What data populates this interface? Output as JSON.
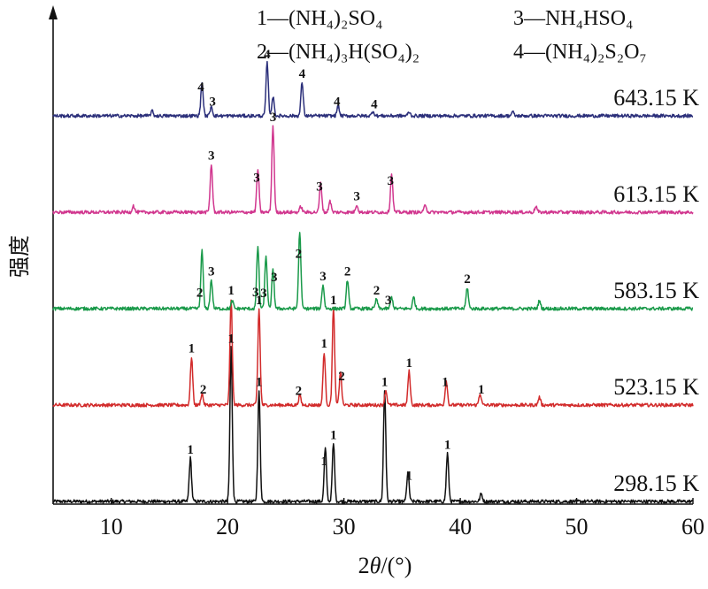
{
  "chart_data": {
    "type": "line",
    "xlabel_prefix": "2",
    "xlabel_theta": "θ",
    "xlabel_suffix": "/(°)",
    "ylabel": "强度",
    "xlim": [
      5,
      60
    ],
    "xticks": [
      "10",
      "20",
      "30",
      "40",
      "50",
      "60"
    ],
    "xtick_values": [
      10,
      20,
      30,
      40,
      50,
      60
    ],
    "grid": false,
    "legend": [
      {
        "num": "1",
        "dash": "—",
        "formula": "(NH₄)₂SO₄"
      },
      {
        "num": "2",
        "dash": "—",
        "formula": "(NH₄)₃H(SO₄)₂"
      },
      {
        "num": "3",
        "dash": "—",
        "formula": "NH₄HSO₄"
      },
      {
        "num": "4",
        "dash": "—",
        "formula": "(NH₄)₂S₂O₇"
      }
    ],
    "series": [
      {
        "name": "298.15 K",
        "color": "#111111",
        "baseline": 0.0,
        "peaks": [
          [
            16.8,
            0.45
          ],
          [
            20.3,
            1.6
          ],
          [
            22.7,
            1.15
          ],
          [
            28.4,
            0.55
          ],
          [
            29.1,
            0.6
          ],
          [
            33.5,
            1.15
          ],
          [
            35.5,
            0.3
          ],
          [
            38.9,
            0.5
          ],
          [
            41.8,
            0.08
          ]
        ],
        "labels": [
          [
            16.8,
            "1"
          ],
          [
            20.3,
            "1"
          ],
          [
            22.7,
            "1"
          ],
          [
            28.3,
            "1"
          ],
          [
            29.1,
            "1"
          ],
          [
            33.5,
            "1"
          ],
          [
            35.6,
            "1"
          ],
          [
            38.9,
            "1"
          ]
        ]
      },
      {
        "name": "523.15 K",
        "color": "#d22b2b",
        "baseline": 1.0,
        "peaks": [
          [
            16.9,
            0.5
          ],
          [
            17.8,
            0.12
          ],
          [
            20.3,
            1.1
          ],
          [
            22.7,
            1.0
          ],
          [
            26.2,
            0.1
          ],
          [
            28.3,
            0.55
          ],
          [
            29.1,
            1.0
          ],
          [
            29.7,
            0.35
          ],
          [
            33.6,
            0.15
          ],
          [
            35.6,
            0.35
          ],
          [
            38.8,
            0.25
          ],
          [
            41.7,
            0.12
          ],
          [
            46.8,
            0.08
          ]
        ],
        "labels": [
          [
            16.9,
            "1"
          ],
          [
            17.9,
            "2"
          ],
          [
            20.3,
            "1"
          ],
          [
            22.7,
            "1"
          ],
          [
            26.1,
            "2"
          ],
          [
            28.3,
            "1"
          ],
          [
            29.1,
            "1"
          ],
          [
            29.8,
            "2"
          ],
          [
            35.6,
            "1"
          ],
          [
            38.7,
            "1"
          ],
          [
            41.8,
            "1"
          ]
        ]
      },
      {
        "name": "583.15 K",
        "color": "#1a9a4a",
        "baseline": 2.0,
        "peaks": [
          [
            17.8,
            0.6
          ],
          [
            18.6,
            0.3
          ],
          [
            20.4,
            0.08
          ],
          [
            22.6,
            0.65
          ],
          [
            23.3,
            0.55
          ],
          [
            23.9,
            0.4
          ],
          [
            26.2,
            0.8
          ],
          [
            28.2,
            0.25
          ],
          [
            30.3,
            0.3
          ],
          [
            32.8,
            0.1
          ],
          [
            34.1,
            0.12
          ],
          [
            36.0,
            0.12
          ],
          [
            40.6,
            0.22
          ],
          [
            46.8,
            0.08
          ]
        ],
        "labels": [
          [
            17.6,
            "2"
          ],
          [
            18.6,
            "3"
          ],
          [
            22.4,
            "3"
          ],
          [
            23.1,
            "3"
          ],
          [
            24.0,
            "3"
          ],
          [
            26.1,
            "2"
          ],
          [
            28.2,
            "3"
          ],
          [
            30.3,
            "2"
          ],
          [
            32.8,
            "2"
          ],
          [
            33.8,
            "3"
          ],
          [
            40.6,
            "2"
          ]
        ]
      },
      {
        "name": "613.15 K",
        "color": "#d1378f",
        "baseline": 3.0,
        "peaks": [
          [
            11.9,
            0.07
          ],
          [
            18.6,
            0.5
          ],
          [
            22.6,
            0.45
          ],
          [
            23.9,
            0.9
          ],
          [
            26.3,
            0.06
          ],
          [
            28.0,
            0.3
          ],
          [
            28.8,
            0.12
          ],
          [
            31.1,
            0.08
          ],
          [
            34.1,
            0.4
          ],
          [
            37.0,
            0.08
          ],
          [
            46.5,
            0.06
          ]
        ],
        "labels": [
          [
            18.6,
            "3"
          ],
          [
            22.5,
            "3"
          ],
          [
            23.9,
            "3"
          ],
          [
            27.9,
            "3"
          ],
          [
            31.1,
            "3"
          ],
          [
            34.0,
            "3"
          ]
        ]
      },
      {
        "name": "643.15 K",
        "color": "#2b2f7a",
        "baseline": 4.0,
        "peaks": [
          [
            13.5,
            0.05
          ],
          [
            17.8,
            0.35
          ],
          [
            18.6,
            0.1
          ],
          [
            23.4,
            0.55
          ],
          [
            23.9,
            0.2
          ],
          [
            26.4,
            0.35
          ],
          [
            29.5,
            0.1
          ],
          [
            32.5,
            0.05
          ],
          [
            35.6,
            0.04
          ],
          [
            44.5,
            0.04
          ]
        ],
        "labels": [
          [
            17.7,
            "4"
          ],
          [
            18.7,
            "3"
          ],
          [
            23.4,
            "4"
          ],
          [
            26.4,
            "4"
          ],
          [
            29.4,
            "4"
          ],
          [
            32.6,
            "4"
          ]
        ]
      }
    ]
  }
}
